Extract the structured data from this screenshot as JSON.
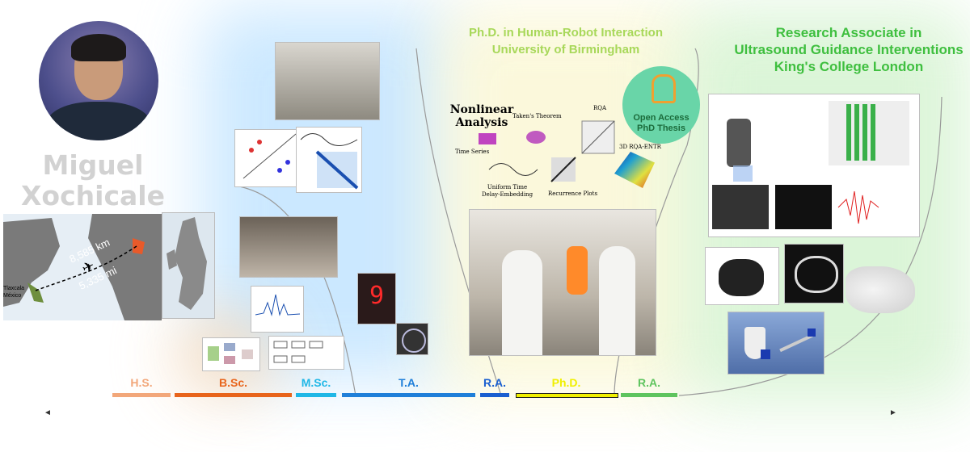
{
  "person": {
    "first_name": "Miguel",
    "last_name": "Xochicale"
  },
  "map": {
    "km": "8,585 km",
    "mi": "5,335 mi",
    "origin": "Tlaxcala\nMéxico"
  },
  "phd": {
    "line1": "Ph.D. in Human-Robot Interaction",
    "line2": "University of Birmingham",
    "analysis_title": "Nonlinear\nAnalysis",
    "labels": {
      "time_series": "Time Series",
      "takens": "Taken's Theorem",
      "uniform": "Uniform Time\nDelay-Embedding",
      "rqa": "RQA",
      "recurrence": "Recurrence Plots",
      "rqa3d": "3D RQA-ENTR"
    },
    "badge": "Open Access\nPhD Thesis"
  },
  "ra": {
    "line1": "Research Associate in",
    "line2": "Ultrasound Guidance Interventions",
    "line3": "King's College London"
  },
  "timeline": [
    {
      "label": "H.S.",
      "color": "#f2a77a"
    },
    {
      "label": "B.Sc.",
      "color": "#e8641b"
    },
    {
      "label": "M.Sc.",
      "color": "#1fb7e6"
    },
    {
      "label": "T.A.",
      "color": "#1f7fd9"
    },
    {
      "label": "R.A.",
      "color": "#1a5fd0"
    },
    {
      "label": "Ph.D.",
      "color": "#f0f000"
    },
    {
      "label": "R.A.",
      "color": "#5ec45e"
    }
  ],
  "arrows": {
    "left": "◄",
    "right": "►"
  }
}
